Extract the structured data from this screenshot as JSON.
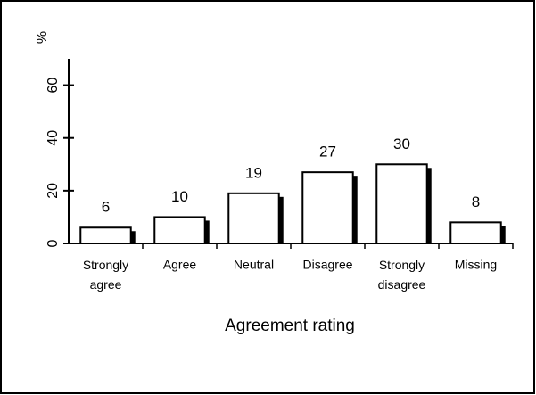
{
  "chart_data": {
    "type": "bar",
    "categories": [
      "Strongly agree",
      "Agree",
      "Neutral",
      "Disagree",
      "Strongly disagree",
      "Missing"
    ],
    "values": [
      6,
      10,
      19,
      27,
      30,
      8
    ],
    "ylabel": "%",
    "xlabel": "Agreement rating",
    "ylim": [
      0,
      70
    ],
    "yticks": [
      0,
      20,
      40,
      60
    ],
    "color": "#ffffff"
  }
}
